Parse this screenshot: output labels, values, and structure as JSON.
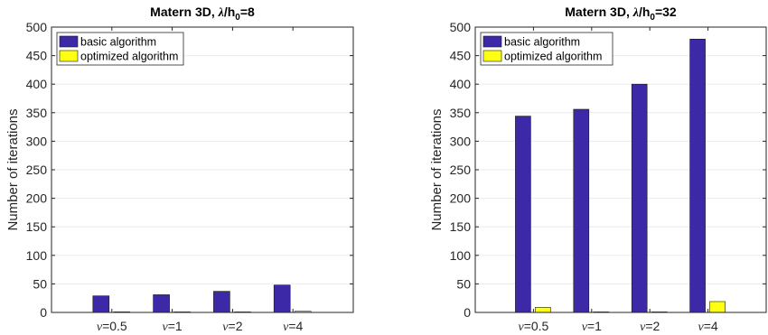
{
  "chart_data": [
    {
      "type": "bar",
      "title": "Matern 3D, λ/h₀=8",
      "title_parts": {
        "prefix": "Matern 3D, ",
        "symbol": "λ",
        "mid": "/h",
        "sub": "0",
        "suffix": "=8"
      },
      "xlabel": "",
      "ylabel": "Number of iterations",
      "ylim": [
        0,
        500
      ],
      "yticks": [
        0,
        50,
        100,
        150,
        200,
        250,
        300,
        350,
        400,
        450,
        500
      ],
      "categories": [
        "ν=0.5",
        "ν=1",
        "ν=2",
        "ν=4"
      ],
      "category_parts": [
        {
          "symbol": "ν",
          "rest": "=0.5"
        },
        {
          "symbol": "ν",
          "rest": "=1"
        },
        {
          "symbol": "ν",
          "rest": "=2"
        },
        {
          "symbol": "ν",
          "rest": "=4"
        }
      ],
      "grid": true,
      "legend_position": "top-left",
      "series": [
        {
          "name": "basic algorithm",
          "color": "#3b29a8",
          "values": [
            29,
            31,
            37,
            48
          ]
        },
        {
          "name": "optimized algorithm",
          "color": "#ffff14",
          "values": [
            1,
            0,
            0,
            2
          ]
        }
      ]
    },
    {
      "type": "bar",
      "title": "Matern 3D, λ/h₀=32",
      "title_parts": {
        "prefix": "Matern 3D, ",
        "symbol": "λ",
        "mid": "/h",
        "sub": "0",
        "suffix": "=32"
      },
      "xlabel": "",
      "ylabel": "Number of iterations",
      "ylim": [
        0,
        500
      ],
      "yticks": [
        0,
        50,
        100,
        150,
        200,
        250,
        300,
        350,
        400,
        450,
        500
      ],
      "categories": [
        "ν=0.5",
        "ν=1",
        "ν=2",
        "ν=4"
      ],
      "category_parts": [
        {
          "symbol": "ν",
          "rest": "=0.5"
        },
        {
          "symbol": "ν",
          "rest": "=1"
        },
        {
          "symbol": "ν",
          "rest": "=2"
        },
        {
          "symbol": "ν",
          "rest": "=4"
        }
      ],
      "grid": true,
      "legend_position": "top-left",
      "series": [
        {
          "name": "basic algorithm",
          "color": "#3b29a8",
          "values": [
            344,
            356,
            400,
            479
          ]
        },
        {
          "name": "optimized algorithm",
          "color": "#ffff14",
          "values": [
            9,
            0,
            0,
            19
          ]
        }
      ]
    }
  ]
}
